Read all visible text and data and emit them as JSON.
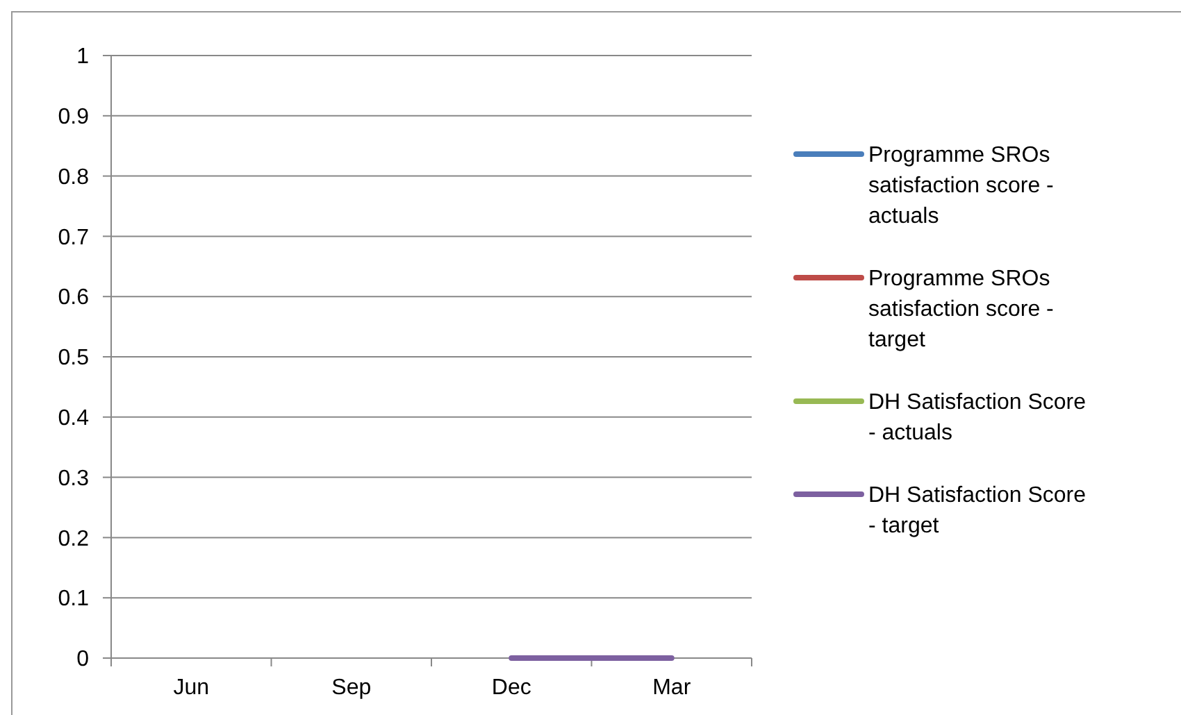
{
  "chart_data": {
    "type": "line",
    "categories": [
      "Jun",
      "Sep",
      "Dec",
      "Mar"
    ],
    "series": [
      {
        "name": "Programme SROs satisfaction score - actuals",
        "color": "#4a7ebb",
        "values": [
          null,
          null,
          null,
          null
        ]
      },
      {
        "name": "Programme SROs satisfaction score - target",
        "color": "#be4b48",
        "values": [
          null,
          null,
          null,
          null
        ]
      },
      {
        "name": "DH Satisfaction Score - actuals",
        "color": "#98b954",
        "values": [
          null,
          null,
          null,
          null
        ]
      },
      {
        "name": "DH Satisfaction Score - target",
        "color": "#7d60a0",
        "values": [
          null,
          null,
          0,
          0
        ]
      }
    ],
    "ylim": [
      0,
      1
    ],
    "yticks": [
      0,
      0.1,
      0.2,
      0.3,
      0.4,
      0.5,
      0.6,
      0.7,
      0.8,
      0.9,
      1
    ],
    "grid": "y",
    "legend": "right",
    "marker": "none",
    "line_style": "solid"
  }
}
